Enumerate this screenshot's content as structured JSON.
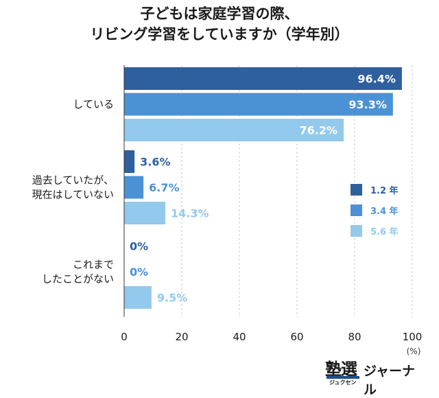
{
  "chart_data": {
    "type": "bar",
    "orientation": "horizontal",
    "title_lines": [
      "子どもは家庭学習の際、",
      "リビング学習をしていますか（学年別）"
    ],
    "categories": [
      [
        "している"
      ],
      [
        "過去していたが、",
        "現在はしていない"
      ],
      [
        "これまで",
        "したことがない"
      ]
    ],
    "series": [
      {
        "name": "1.2 年",
        "color": "#2e5f9e",
        "values": [
          96.4,
          3.6,
          0
        ],
        "labels": [
          "96.4%",
          "3.6%",
          "0%"
        ]
      },
      {
        "name": "3.4 年",
        "color": "#4b91d6",
        "values": [
          93.3,
          6.7,
          0
        ],
        "labels": [
          "93.3%",
          "6.7%",
          "0%"
        ]
      },
      {
        "name": "5.6 年",
        "color": "#93c9ec",
        "values": [
          76.2,
          14.3,
          9.5
        ],
        "labels": [
          "76.2%",
          "14.3%",
          "9.5%"
        ]
      }
    ],
    "xlim": [
      0,
      100
    ],
    "xticks": [
      0,
      20,
      40,
      60,
      80,
      100
    ],
    "xunit": "(%)",
    "grid": true,
    "legend_position": "right"
  },
  "branding": {
    "logo_main": "塾選",
    "logo_sub": "ジュクセン",
    "logo_word": "ジャーナル"
  }
}
